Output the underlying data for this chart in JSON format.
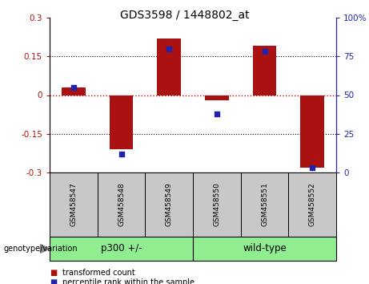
{
  "title": "GDS3598 / 1448802_at",
  "samples": [
    "GSM458547",
    "GSM458548",
    "GSM458549",
    "GSM458550",
    "GSM458551",
    "GSM458552"
  ],
  "red_values": [
    0.03,
    -0.21,
    0.22,
    -0.02,
    0.19,
    -0.28
  ],
  "blue_values": [
    55,
    12,
    80,
    38,
    78,
    3
  ],
  "group1_label": "p300 +/-",
  "group2_label": "wild-type",
  "group_prefix": "genotype/variation",
  "ylim_left": [
    -0.3,
    0.3
  ],
  "ylim_right": [
    0,
    100
  ],
  "yticks_left": [
    -0.3,
    -0.15,
    0,
    0.15,
    0.3
  ],
  "yticks_right": [
    0,
    25,
    50,
    75,
    100
  ],
  "ytick_labels_left": [
    "-0.3",
    "-0.15",
    "0",
    "0.15",
    "0.3"
  ],
  "ytick_labels_right": [
    "0",
    "25",
    "50",
    "75",
    "100%"
  ],
  "hlines_dotted": [
    0.15,
    -0.15
  ],
  "hline_zero_color": "#CC0000",
  "red_color": "#AA1111",
  "blue_color": "#2222AA",
  "bar_width": 0.5,
  "legend_items": [
    "transformed count",
    "percentile rank within the sample"
  ],
  "green_color": "#90EE90",
  "gray_color": "#C8C8C8"
}
